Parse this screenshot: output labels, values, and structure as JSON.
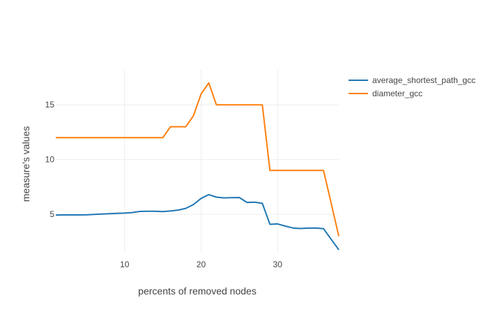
{
  "chart_data": {
    "type": "line",
    "title": "",
    "xlabel": "percents of removed nodes",
    "ylabel": "measure's values",
    "xlim": [
      1,
      38
    ],
    "ylim": [
      1.5,
      18.2
    ],
    "xticks": [
      10,
      20,
      30
    ],
    "yticks": [
      5,
      10,
      15
    ],
    "grid": true,
    "legend_position": "top-right",
    "series": [
      {
        "name": "average_shortest_path_gcc",
        "color": "#1f77b4",
        "x": [
          1,
          2,
          3,
          4,
          5,
          6,
          7,
          8,
          9,
          10,
          11,
          12,
          13,
          14,
          15,
          16,
          17,
          18,
          19,
          20,
          21,
          22,
          23,
          24,
          25,
          26,
          27,
          28,
          29,
          30,
          31,
          32,
          33,
          34,
          35,
          36,
          38
        ],
        "y": [
          4.93,
          4.94,
          4.94,
          4.94,
          4.95,
          4.99,
          5.02,
          5.05,
          5.08,
          5.11,
          5.16,
          5.26,
          5.28,
          5.28,
          5.25,
          5.3,
          5.38,
          5.54,
          5.89,
          6.45,
          6.8,
          6.57,
          6.5,
          6.52,
          6.53,
          6.08,
          6.1,
          6.0,
          4.08,
          4.12,
          3.92,
          3.75,
          3.7,
          3.74,
          3.75,
          3.68,
          1.75
        ]
      },
      {
        "name": "diameter_gcc",
        "color": "#ff7f0e",
        "x": [
          1,
          2,
          3,
          4,
          5,
          6,
          7,
          8,
          9,
          10,
          11,
          12,
          13,
          14,
          15,
          16,
          17,
          18,
          19,
          20,
          21,
          22,
          23,
          24,
          25,
          26,
          27,
          28,
          29,
          30,
          31,
          32,
          33,
          34,
          35,
          36,
          38
        ],
        "y": [
          12,
          12,
          12,
          12,
          12,
          12,
          12,
          12,
          12,
          12,
          12,
          12,
          12,
          12,
          12,
          13,
          13,
          13,
          14,
          16,
          17,
          15,
          15,
          15,
          15,
          15,
          15,
          15,
          9,
          9,
          9,
          9,
          9,
          9,
          9,
          9,
          3
        ]
      }
    ]
  }
}
